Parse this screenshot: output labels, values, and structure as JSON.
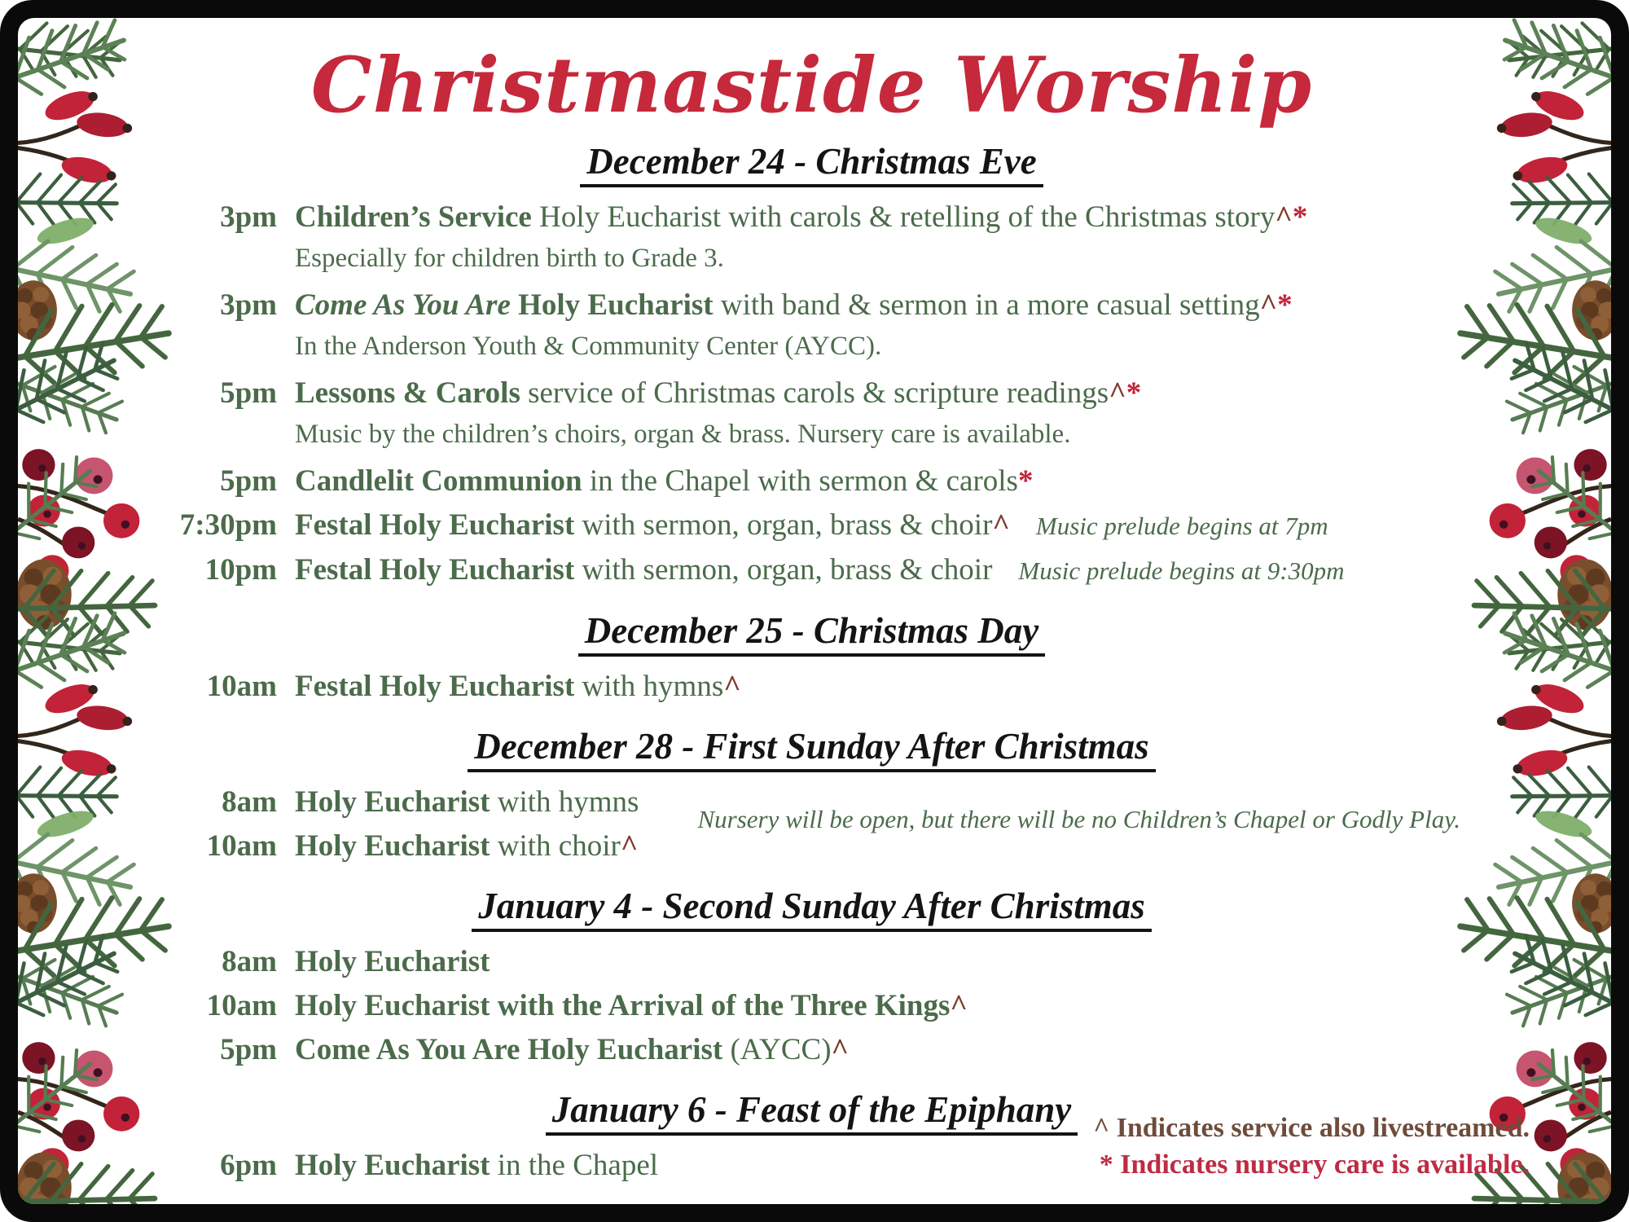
{
  "title": "Christmastide Worship",
  "colors": {
    "accent_red": "#c5293b",
    "body_green": "#4b6b4b",
    "caret_brown": "#7e3b2a",
    "star_red": "#c0243a",
    "heading_black": "#141414",
    "footnote_brown": "#6e4c3b",
    "footnote_red": "#bf2b44"
  },
  "decoration": "watercolor pine garland with red berries, rosehips and pinecones on left and right edges, black rounded frame",
  "sections": [
    {
      "heading": "December 24 - Christmas Eve",
      "services": [
        {
          "time": "3pm",
          "segments": [
            {
              "t": "Children’s Service ",
              "s": "b"
            },
            {
              "t": "Holy Eucharist with carols & retelling of the Christmas story",
              "s": "r"
            },
            {
              "t": "^",
              "s": "caret"
            },
            {
              "t": "*",
              "s": "star"
            }
          ],
          "subtext": "Especially for children birth to Grade 3."
        },
        {
          "time": "3pm",
          "segments": [
            {
              "t": "Come As You Are ",
              "s": "bi"
            },
            {
              "t": "Holy Eucharist ",
              "s": "b"
            },
            {
              "t": "with band & sermon in a more casual setting",
              "s": "r"
            },
            {
              "t": "^",
              "s": "caret"
            },
            {
              "t": "*",
              "s": "star"
            }
          ],
          "subtext": "In the Anderson Youth & Community Center (AYCC)."
        },
        {
          "time": "5pm",
          "segments": [
            {
              "t": "Lessons & Carols ",
              "s": "b"
            },
            {
              "t": "service of Christmas carols & scripture readings",
              "s": "r"
            },
            {
              "t": "^",
              "s": "caret"
            },
            {
              "t": "*",
              "s": "star"
            }
          ],
          "subtext": "Music by the children’s choirs, organ & brass. Nursery care is available."
        },
        {
          "time": "5pm",
          "segments": [
            {
              "t": "Candlelit Communion ",
              "s": "b"
            },
            {
              "t": "in the Chapel with sermon & carols",
              "s": "r"
            },
            {
              "t": "*",
              "s": "star"
            }
          ]
        },
        {
          "time": "7:30pm",
          "segments": [
            {
              "t": "Festal Holy Eucharist ",
              "s": "b"
            },
            {
              "t": "with sermon, organ, brass & choir",
              "s": "r"
            },
            {
              "t": "^",
              "s": "caret"
            }
          ],
          "side_note": "Music prelude begins at 7pm"
        },
        {
          "time": "10pm",
          "segments": [
            {
              "t": "Festal Holy Eucharist ",
              "s": "b"
            },
            {
              "t": "with sermon, organ, brass & choir",
              "s": "r"
            }
          ],
          "side_note": "Music prelude begins at 9:30pm"
        }
      ]
    },
    {
      "heading": "December 25 - Christmas Day",
      "services": [
        {
          "time": "10am",
          "segments": [
            {
              "t": "Festal Holy Eucharist ",
              "s": "b"
            },
            {
              "t": "with hymns",
              "s": "r"
            },
            {
              "t": "^",
              "s": "caret"
            }
          ]
        }
      ]
    },
    {
      "heading": "December 28 - First Sunday After Christmas",
      "note": "Nursery will be open, but there will be no Children’s Chapel or Godly Play.",
      "services": [
        {
          "time": "8am",
          "segments": [
            {
              "t": "Holy Eucharist ",
              "s": "b"
            },
            {
              "t": "with hymns",
              "s": "r"
            }
          ]
        },
        {
          "time": "10am",
          "segments": [
            {
              "t": "Holy Eucharist ",
              "s": "b"
            },
            {
              "t": "with choir",
              "s": "r"
            },
            {
              "t": "^",
              "s": "caret"
            }
          ]
        }
      ]
    },
    {
      "heading": "January 4 - Second Sunday After Christmas",
      "services": [
        {
          "time": "8am",
          "segments": [
            {
              "t": "Holy Eucharist",
              "s": "b"
            }
          ]
        },
        {
          "time": "10am",
          "segments": [
            {
              "t": "Holy Eucharist with the Arrival of the Three Kings",
              "s": "b"
            },
            {
              "t": "^",
              "s": "caret"
            }
          ]
        },
        {
          "time": "5pm",
          "segments": [
            {
              "t": "Come As You Are Holy Eucharist ",
              "s": "b"
            },
            {
              "t": "(AYCC)",
              "s": "r"
            },
            {
              "t": "^",
              "s": "caret"
            }
          ]
        }
      ]
    },
    {
      "heading": "January 6 - Feast of the Epiphany",
      "services": [
        {
          "time": "6pm",
          "segments": [
            {
              "t": "Holy Eucharist ",
              "s": "b"
            },
            {
              "t": "in the Chapel",
              "s": "r"
            }
          ]
        }
      ]
    }
  ],
  "footnotes": [
    {
      "symbol": "^",
      "text": "Indicates service also livestreamed.",
      "color": "#6e4c3b"
    },
    {
      "symbol": "*",
      "text": "Indicates nursery care is available.",
      "color": "#bf2b44"
    }
  ]
}
